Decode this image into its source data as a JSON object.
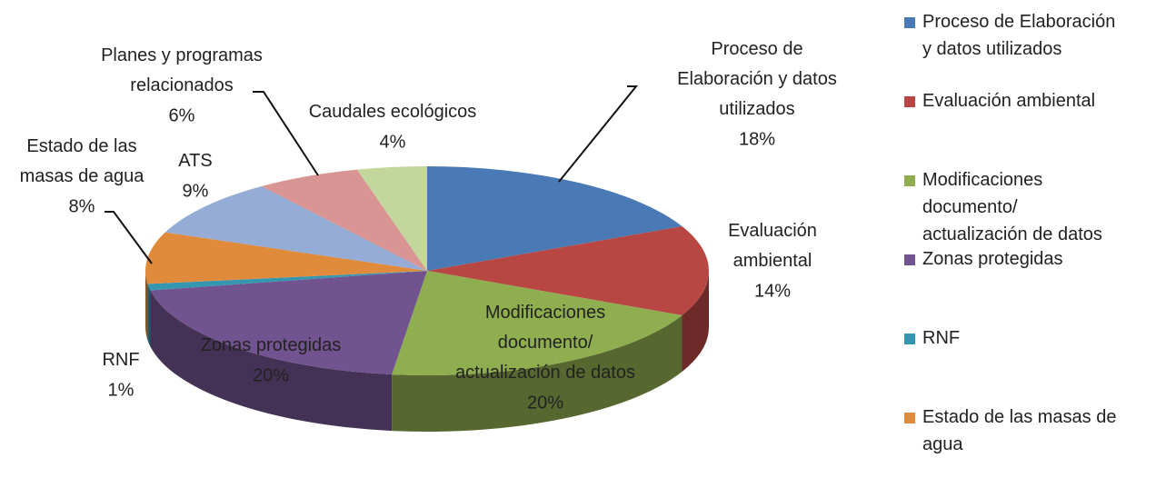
{
  "chart_data": {
    "type": "pie3d",
    "categories": [
      "Proceso de Elaboración y datos utilizados",
      "Evaluación ambiental",
      "Modificaciones documento/ actualización de datos",
      "Zonas protegidas",
      "RNF",
      "Estado de las masas de agua",
      "ATS",
      "Planes y programas relacionados",
      "Caudales ecológicos"
    ],
    "values": [
      18,
      14,
      20,
      20,
      1,
      8,
      9,
      6,
      4
    ],
    "value_labels": [
      "18%",
      "14%",
      "20%",
      "20%",
      "1%",
      "8%",
      "9%",
      "6%",
      "4%"
    ],
    "colors": [
      "#4a7ab5",
      "#b84643",
      "#8fae4f",
      "#71538f",
      "#3596b0",
      "#e08a3c",
      "#95acd6",
      "#d99594",
      "#c3d69b"
    ],
    "legend": "right"
  }
}
